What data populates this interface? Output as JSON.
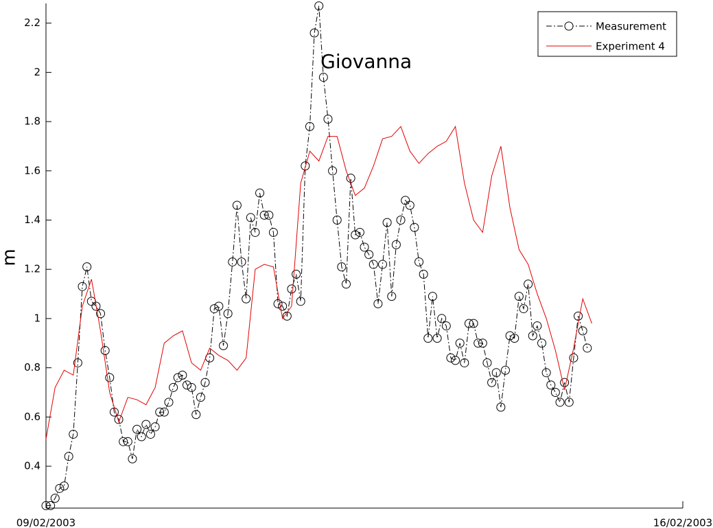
{
  "chart_data": {
    "type": "line",
    "annotations": [
      {
        "text": "Giovanna",
        "x": 3.52,
        "y": 2.04
      }
    ],
    "ylabel": "m",
    "xlim": [
      0,
      7
    ],
    "xticks": [
      {
        "value": 0,
        "label": "09/02/2003"
      },
      {
        "value": 7,
        "label": "16/02/2003"
      }
    ],
    "ylim": [
      0.23,
      2.28
    ],
    "yticks": [
      0.4,
      0.6,
      0.8,
      1,
      1.2,
      1.4,
      1.6,
      1.8,
      2,
      2.2
    ],
    "legend": "upper right",
    "series": [
      {
        "name": "Measurement",
        "color": "#000000",
        "marker": "circle",
        "dash": "dash-dot",
        "x": [
          0,
          0.05,
          0.1,
          0.15,
          0.2,
          0.25,
          0.3,
          0.35,
          0.4,
          0.45,
          0.5,
          0.55,
          0.6,
          0.65,
          0.7,
          0.75,
          0.8,
          0.85,
          0.9,
          0.95,
          1,
          1.05,
          1.1,
          1.15,
          1.2,
          1.25,
          1.3,
          1.35,
          1.4,
          1.45,
          1.5,
          1.55,
          1.6,
          1.65,
          1.7,
          1.75,
          1.8,
          1.85,
          1.9,
          1.95,
          2,
          2.05,
          2.1,
          2.15,
          2.2,
          2.25,
          2.3,
          2.35,
          2.4,
          2.45,
          2.5,
          2.55,
          2.6,
          2.65,
          2.7,
          2.75,
          2.8,
          2.85,
          2.9,
          2.95,
          3,
          3.05,
          3.1,
          3.15,
          3.2,
          3.25,
          3.3,
          3.35,
          3.4,
          3.45,
          3.5,
          3.55,
          3.6,
          3.65,
          3.7,
          3.75,
          3.8,
          3.85,
          3.9,
          3.95,
          4,
          4.05,
          4.1,
          4.15,
          4.2,
          4.25,
          4.3,
          4.35,
          4.4,
          4.45,
          4.5,
          4.55,
          4.6,
          4.65,
          4.7,
          4.75,
          4.8,
          4.85,
          4.9,
          4.95,
          5,
          5.05,
          5.1,
          5.15,
          5.2,
          5.25,
          5.3,
          5.35,
          5.4,
          5.45,
          5.5,
          5.55,
          5.6,
          5.65,
          5.7,
          5.75,
          5.8,
          5.85,
          5.9,
          5.95
        ],
        "values": [
          0.24,
          0.24,
          0.27,
          0.31,
          0.32,
          0.44,
          0.53,
          0.82,
          1.13,
          1.21,
          1.07,
          1.05,
          1.02,
          0.87,
          0.76,
          0.62,
          0.59,
          0.5,
          0.5,
          0.43,
          0.55,
          0.52,
          0.57,
          0.53,
          0.56,
          0.62,
          0.62,
          0.66,
          0.72,
          0.76,
          0.77,
          0.73,
          0.72,
          0.61,
          0.68,
          0.74,
          0.84,
          1.04,
          1.05,
          0.89,
          1.02,
          1.23,
          1.46,
          1.23,
          1.08,
          1.41,
          1.35,
          1.51,
          1.42,
          1.42,
          1.35,
          1.06,
          1.05,
          1.01,
          1.12,
          1.18,
          1.07,
          1.62,
          1.78,
          2.16,
          2.27,
          1.98,
          1.81,
          1.6,
          1.4,
          1.21,
          1.14,
          1.57,
          1.34,
          1.35,
          1.29,
          1.26,
          1.22,
          1.06,
          1.22,
          1.39,
          1.09,
          1.3,
          1.4,
          1.48,
          1.46,
          1.37,
          1.23,
          1.18,
          0.92,
          1.09,
          0.92,
          1.0,
          0.97,
          0.84,
          0.83,
          0.9,
          0.82,
          0.98,
          0.98,
          0.9,
          0.9,
          0.82,
          0.74,
          0.78,
          0.64,
          0.79,
          0.93,
          0.92,
          1.09,
          1.04,
          1.14,
          0.93,
          0.97,
          0.9,
          0.78,
          0.73,
          0.7,
          0.66,
          0.74,
          0.66,
          0.84,
          1.01,
          0.95,
          0.88
        ]
      },
      {
        "name": "Experiment 4",
        "color": "#e00000",
        "x": [
          0,
          0.1,
          0.2,
          0.3,
          0.4,
          0.5,
          0.6,
          0.7,
          0.8,
          0.9,
          1,
          1.1,
          1.2,
          1.3,
          1.4,
          1.5,
          1.6,
          1.7,
          1.8,
          1.9,
          2,
          2.1,
          2.2,
          2.3,
          2.4,
          2.5,
          2.6,
          2.7,
          2.8,
          2.9,
          3,
          3.1,
          3.2,
          3.3,
          3.4,
          3.5,
          3.6,
          3.7,
          3.8,
          3.9,
          4,
          4.1,
          4.2,
          4.3,
          4.4,
          4.5,
          4.6,
          4.7,
          4.8,
          4.9,
          5,
          5.1,
          5.2,
          5.3,
          5.4,
          5.5,
          5.6,
          5.7,
          5.8,
          5.9,
          6
        ],
        "values": [
          0.51,
          0.72,
          0.79,
          0.77,
          1.05,
          1.16,
          0.95,
          0.7,
          0.58,
          0.68,
          0.67,
          0.65,
          0.72,
          0.9,
          0.93,
          0.95,
          0.82,
          0.79,
          0.88,
          0.85,
          0.83,
          0.79,
          0.84,
          1.2,
          1.22,
          1.21,
          1.0,
          1.05,
          1.55,
          1.68,
          1.64,
          1.74,
          1.74,
          1.6,
          1.5,
          1.53,
          1.62,
          1.73,
          1.74,
          1.78,
          1.68,
          1.63,
          1.67,
          1.7,
          1.72,
          1.78,
          1.55,
          1.4,
          1.35,
          1.58,
          1.7,
          1.45,
          1.28,
          1.22,
          1.1,
          1.0,
          0.87,
          0.71,
          0.88,
          1.08,
          0.98
        ]
      }
    ]
  }
}
